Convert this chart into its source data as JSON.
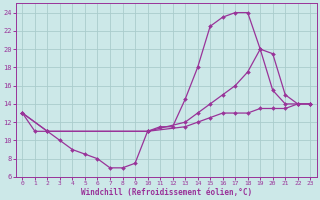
{
  "xlabel": "Windchill (Refroidissement éolien,°C)",
  "ylabel": "",
  "bg_color": "#cce8e8",
  "line_color": "#993399",
  "grid_color": "#aacccc",
  "xlim": [
    -0.5,
    23.5
  ],
  "ylim": [
    6,
    25
  ],
  "xticks": [
    0,
    1,
    2,
    3,
    4,
    5,
    6,
    7,
    8,
    9,
    10,
    11,
    12,
    13,
    14,
    15,
    16,
    17,
    18,
    19,
    20,
    21,
    22,
    23
  ],
  "yticks": [
    6,
    8,
    10,
    12,
    14,
    16,
    18,
    20,
    22,
    24
  ],
  "series": [
    {
      "x": [
        0,
        1,
        2,
        3,
        4,
        5,
        6,
        7,
        8,
        9,
        10,
        11,
        12,
        13,
        14,
        15,
        16,
        17,
        18,
        19,
        20,
        21,
        22,
        23
      ],
      "y": [
        13,
        11,
        11,
        10,
        9,
        8.5,
        8,
        7,
        7,
        7.5,
        11,
        11.5,
        11.5,
        14.5,
        18,
        22.5,
        23.5,
        24,
        24,
        20,
        15.5,
        14,
        14,
        14
      ]
    },
    {
      "x": [
        0,
        2,
        10,
        13,
        14,
        15,
        16,
        17,
        18,
        19,
        20,
        21,
        22,
        23
      ],
      "y": [
        13,
        11,
        11,
        12,
        13,
        14,
        15,
        16,
        17.5,
        20,
        19.5,
        15,
        14,
        14
      ]
    },
    {
      "x": [
        0,
        2,
        10,
        13,
        14,
        15,
        16,
        17,
        18,
        19,
        20,
        21,
        22,
        23
      ],
      "y": [
        13,
        11,
        11,
        11.5,
        12,
        12.5,
        13,
        13,
        13,
        13.5,
        13.5,
        13.5,
        14,
        14
      ]
    }
  ]
}
